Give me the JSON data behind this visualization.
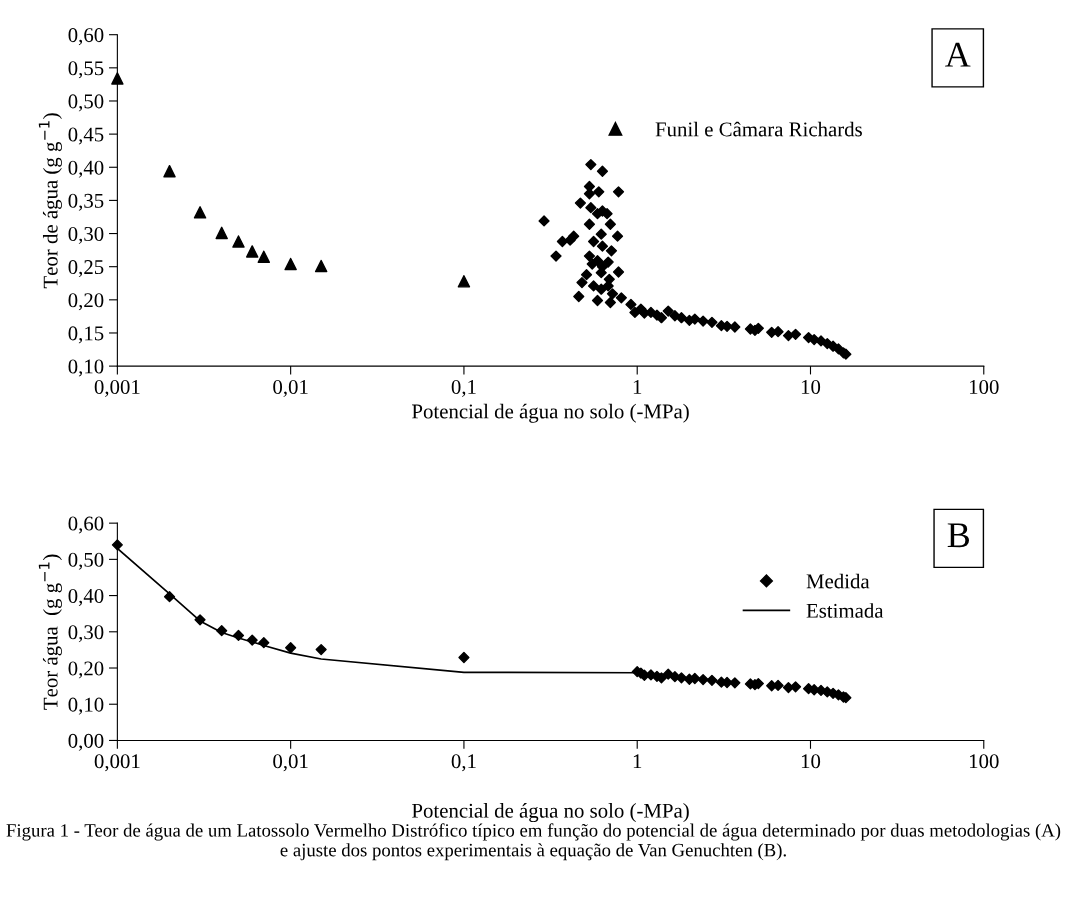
{
  "chart_data": [
    {
      "type": "scatter",
      "xlabel": "Potencial de água no solo (-MPa)",
      "ylabel": "Teor de água (g g$^{−1}$)",
      "log": "x",
      "xlim": [
        0.001,
        100
      ],
      "xticks": [
        {
          "value": 0.001,
          "label": "0,001"
        },
        {
          "value": 0.01,
          "label": "0,01"
        },
        {
          "value": 0.1,
          "label": "0,1"
        },
        1,
        10,
        100
      ],
      "ylim": [
        0.1,
        0.6
      ],
      "yticks": [
        {
          "value": 0.1,
          "label": "0,10"
        },
        {
          "value": 0.15,
          "label": "0,15"
        },
        {
          "value": 0.2,
          "label": "0,20"
        },
        {
          "value": 0.25,
          "label": "0,25"
        },
        {
          "value": 0.3,
          "label": "0,30"
        },
        {
          "value": 0.35,
          "label": "0,35"
        },
        {
          "value": 0.4,
          "label": "0,40"
        },
        {
          "value": 0.45,
          "label": "0,45"
        },
        {
          "value": 0.5,
          "label": "0,50"
        },
        {
          "value": 0.55,
          "label": "0,55"
        },
        {
          "value": 0.6,
          "label": "0,60"
        }
      ],
      "legend": "top right",
      "annotations": [
        "A"
      ],
      "series": [
        {
          "marker": "diamond",
          "color": "#000000",
          "x": [
            0.54,
            0.63,
            0.53,
            0.53,
            0.6,
            0.78,
            0.47,
            0.54,
            0.63,
            0.67,
            0.59,
            0.53,
            0.7,
            0.29,
            0.62,
            0.77,
            0.43,
            0.41,
            0.37,
            0.56,
            0.63,
            0.71,
            0.34,
            0.53,
            0.59,
            0.55,
            0.68,
            0.63,
            0.62,
            0.78,
            0.51,
            0.48,
            0.69,
            0.56,
            0.62,
            0.68,
            0.46,
            0.59,
            0.7,
            0.72,
            0.81,
            0.92,
            0.97,
            1.05,
            1.1,
            1.2,
            1.3,
            1.38,
            1.51,
            1.65,
            1.8,
            2.0,
            2.15,
            2.4,
            2.7,
            3.06,
            3.3,
            3.66,
            4.5,
            4.78,
            5.0,
            5.97,
            6.5,
            7.46,
            8.2,
            9.75,
            10.5,
            11.5,
            12.5,
            13.5,
            14.5,
            15.5,
            16
          ],
          "values": [
            0.404,
            0.394,
            0.371,
            0.36,
            0.363,
            0.363,
            0.346,
            0.339,
            0.334,
            0.33,
            0.33,
            0.314,
            0.314,
            0.319,
            0.299,
            0.296,
            0.296,
            0.29,
            0.288,
            0.288,
            0.281,
            0.274,
            0.266,
            0.266,
            0.259,
            0.254,
            0.257,
            0.25,
            0.241,
            0.242,
            0.238,
            0.226,
            0.231,
            0.221,
            0.216,
            0.221,
            0.205,
            0.199,
            0.196,
            0.209,
            0.203,
            0.193,
            0.181,
            0.186,
            0.18,
            0.181,
            0.177,
            0.173,
            0.183,
            0.176,
            0.173,
            0.169,
            0.171,
            0.168,
            0.166,
            0.161,
            0.16,
            0.159,
            0.156,
            0.154,
            0.157,
            0.151,
            0.152,
            0.146,
            0.148,
            0.143,
            0.14,
            0.138,
            0.134,
            0.13,
            0.126,
            0.12,
            0.118
          ]
        },
        {
          "marker": "triangle",
          "color": "#000000",
          "name": "Funil e Câmara Richards",
          "x": [
            0.001,
            0.002,
            0.003,
            0.004,
            0.005,
            0.006,
            0.007,
            0.01,
            0.015,
            0.1
          ],
          "values": [
            0.534,
            0.394,
            0.332,
            0.301,
            0.288,
            0.273,
            0.265,
            0.254,
            0.251,
            0.228
          ]
        }
      ]
    },
    {
      "type": "scatter",
      "xlabel": "Potencial de água no solo (-MPa)",
      "ylabel": "Teor água  (g g$^{−1}$)",
      "log": "x",
      "xlim": [
        0.001,
        100
      ],
      "xticks": [
        {
          "value": 0.001,
          "label": "0,001"
        },
        {
          "value": 0.01,
          "label": "0,01"
        },
        {
          "value": 0.1,
          "label": "0,1"
        },
        1,
        10,
        100
      ],
      "ylim": [
        0.0,
        0.6
      ],
      "yticks": [
        {
          "value": 0.0,
          "label": "0,00"
        },
        {
          "value": 0.1,
          "label": "0,10"
        },
        {
          "value": 0.2,
          "label": "0,20"
        },
        {
          "value": 0.3,
          "label": "0,30"
        },
        {
          "value": 0.4,
          "label": "0,40"
        },
        {
          "value": 0.5,
          "label": "0,50"
        },
        {
          "value": 0.6,
          "label": "0,60"
        }
      ],
      "legend": "top right",
      "annotations": [
        "B",
        "Figura 1 - Teor de água de um Latossolo Vermelho Distrófico típico em função do potencial de água determinado por duas metodologias (A) e ajuste dos pontos experimentais à equação de Van Genuchten (B)."
      ],
      "series": [
        {
          "marker": "diamond",
          "color": "#000000",
          "name": "Medida",
          "x": [
            0.001,
            0.002,
            0.003,
            0.004,
            0.005,
            0.006,
            0.007,
            0.01,
            0.015,
            0.1,
            1.0,
            1.05,
            1.1,
            1.2,
            1.3,
            1.38,
            1.51,
            1.65,
            1.8,
            2.0,
            2.15,
            2.4,
            2.7,
            3.06,
            3.3,
            3.66,
            4.5,
            4.78,
            5.0,
            5.97,
            6.5,
            7.46,
            8.2,
            9.75,
            10.5,
            11.5,
            12.5,
            13.5,
            14.5,
            15.5,
            16
          ],
          "values": [
            0.54,
            0.397,
            0.333,
            0.303,
            0.29,
            0.277,
            0.27,
            0.256,
            0.251,
            0.229,
            0.19,
            0.186,
            0.18,
            0.181,
            0.177,
            0.173,
            0.183,
            0.176,
            0.173,
            0.169,
            0.171,
            0.168,
            0.166,
            0.161,
            0.16,
            0.159,
            0.156,
            0.154,
            0.157,
            0.151,
            0.152,
            0.146,
            0.148,
            0.143,
            0.14,
            0.138,
            0.134,
            0.13,
            0.126,
            0.12,
            0.118
          ]
        },
        {
          "type": "line",
          "line_style": "solid",
          "color": "#000000",
          "name": "Estimada",
          "x": [
            0.001,
            0.002,
            0.003,
            0.004,
            0.005,
            0.006,
            0.007,
            0.01,
            0.015,
            0.1,
            1.0
          ],
          "values": [
            0.53,
            0.405,
            0.33,
            0.298,
            0.283,
            0.272,
            0.262,
            0.241,
            0.225,
            0.188,
            0.187
          ]
        }
      ]
    }
  ]
}
